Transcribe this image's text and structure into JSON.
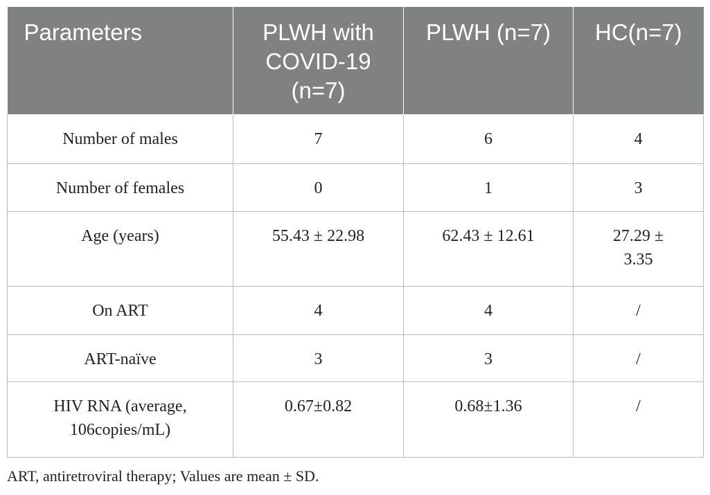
{
  "table": {
    "headers": [
      "Parameters",
      "PLWH with COVID-19 (n=7)",
      "PLWH (n=7)",
      "HC(n=7)"
    ],
    "rows": [
      [
        "Number of males",
        "7",
        "6",
        "4"
      ],
      [
        "Number of females",
        "0",
        "1",
        "3"
      ],
      [
        "Age (years)",
        "55.43 ± 22.98",
        "62.43 ± 12.61",
        "27.29 ± 3.35"
      ],
      [
        "On ART",
        "4",
        "4",
        "/"
      ],
      [
        "ART-naïve",
        "3",
        "3",
        "/"
      ],
      [
        "HIV RNA (average, 106copies/mL)",
        "0.67±0.82",
        "0.68±1.36",
        "/"
      ]
    ]
  },
  "footnote": "ART, antiretroviral therapy; Values are mean ± SD."
}
